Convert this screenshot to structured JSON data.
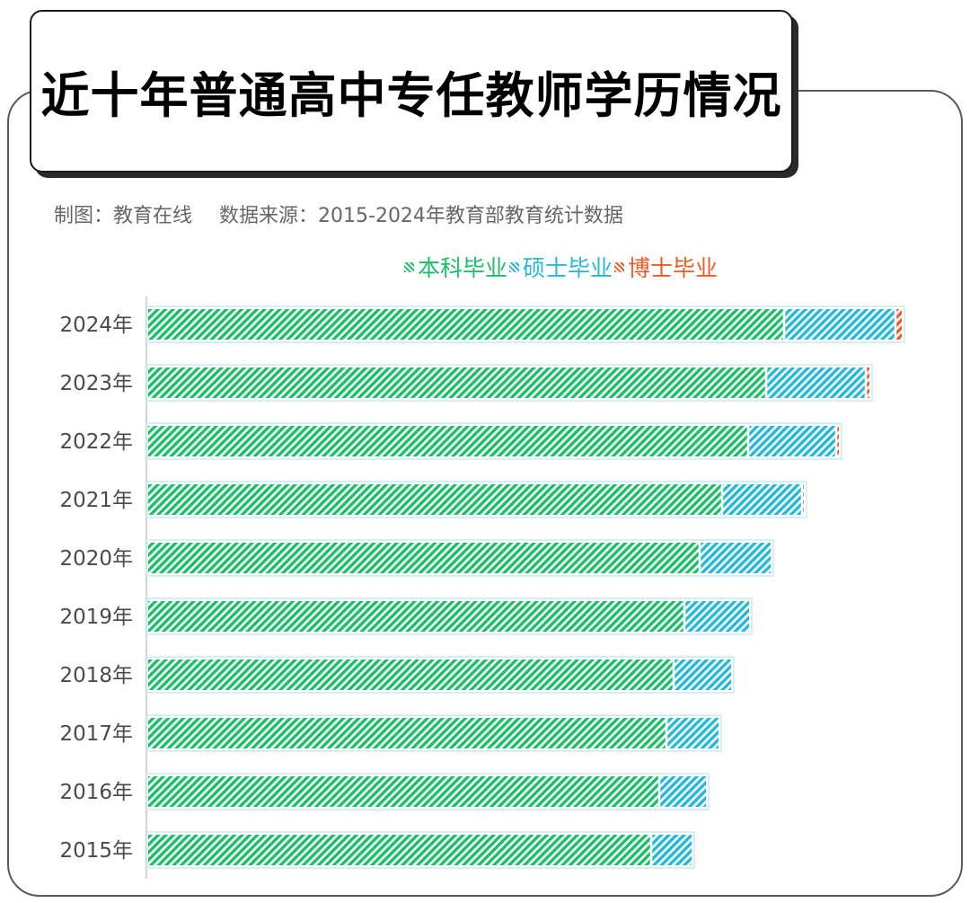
{
  "title": "近十年普通高中专任教师学历情况",
  "subtitle_maker": "制图：教育在线",
  "subtitle_source": "数据来源：2015-2024年教育部教育统计数据",
  "chart_data": {
    "type": "bar",
    "orientation": "horizontal",
    "stacked": true,
    "title": "近十年普通高中专任教师学历情况",
    "categories": [
      "2024年",
      "2023年",
      "2022年",
      "2021年",
      "2020年",
      "2019年",
      "2018年",
      "2017年",
      "2016年",
      "2015年"
    ],
    "series": [
      {
        "name": "本科毕业",
        "color": "#1bbf6a",
        "values": [
          708,
          688,
          668,
          639,
          614,
          597,
          585,
          577,
          569,
          560
        ]
      },
      {
        "name": "硕士毕业",
        "color": "#25b8d8",
        "values": [
          124,
          111,
          98,
          89,
          79,
          72,
          64,
          58,
          52,
          45
        ]
      },
      {
        "name": "博士毕业",
        "color": "#f05a28",
        "values": [
          7,
          4,
          3,
          2,
          0,
          0,
          0,
          0,
          0,
          0
        ]
      }
    ],
    "legend_position": "top",
    "xaxis_visible": false,
    "grid": false
  }
}
